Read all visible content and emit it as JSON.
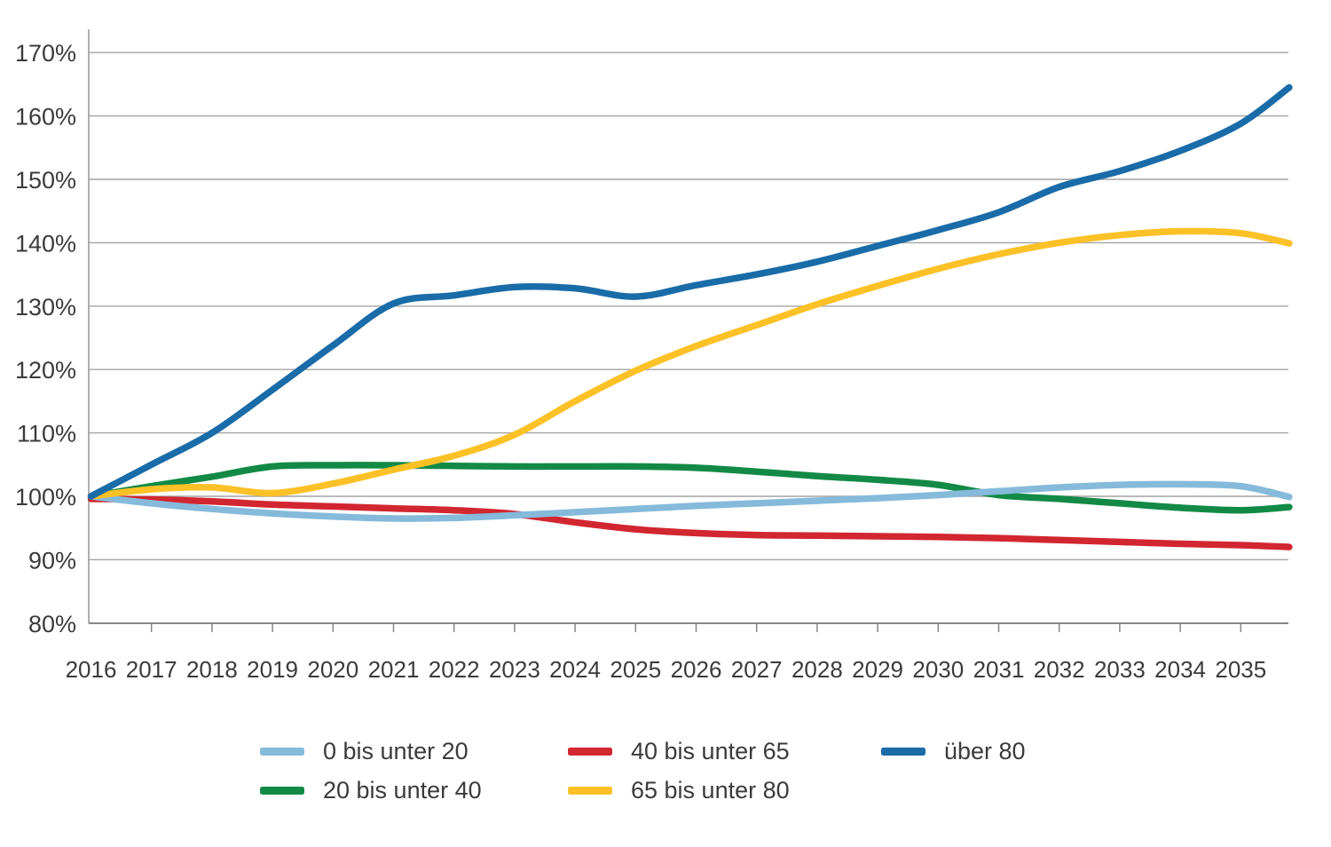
{
  "chart_data": {
    "type": "line",
    "title": "",
    "xlabel": "",
    "ylabel": "",
    "unit": "percent",
    "grid": "horizontal",
    "legend_position": "bottom",
    "x": [
      2016,
      2017,
      2018,
      2019,
      2020,
      2021,
      2022,
      2023,
      2024,
      2025,
      2026,
      2027,
      2028,
      2029,
      2030,
      2031,
      2032,
      2033,
      2034,
      2035,
      2035.8
    ],
    "x_tick_years": [
      2016,
      2017,
      2018,
      2019,
      2020,
      2021,
      2022,
      2023,
      2024,
      2025,
      2026,
      2027,
      2028,
      2029,
      2030,
      2031,
      2032,
      2033,
      2034,
      2035
    ],
    "x_tick_labels": [
      "2016",
      "2017",
      "2018",
      "2019",
      "2020",
      "2021",
      "2022",
      "2023",
      "2024",
      "2025",
      "2026",
      "2027",
      "2028",
      "2029",
      "2030",
      "2031",
      "2032",
      "2033",
      "2034",
      "2035"
    ],
    "y_range": [
      80,
      170
    ],
    "y_ticks": [
      80,
      90,
      100,
      110,
      120,
      130,
      140,
      150,
      160,
      170
    ],
    "y_tick_labels": [
      "80%",
      "90%",
      "100%",
      "110%",
      "120%",
      "130%",
      "140%",
      "150%",
      "160%",
      "170%"
    ],
    "series": [
      {
        "id": "20-bis-unter-40",
        "name": "20 bis unter 40",
        "color": "#128a46",
        "values": [
          100,
          101.6,
          103.1,
          104.7,
          104.9,
          104.9,
          104.8,
          104.7,
          104.7,
          104.7,
          104.5,
          103.9,
          103.2,
          102.6,
          101.8,
          100.2,
          99.6,
          98.9,
          98.2,
          97.8,
          98.3
        ]
      },
      {
        "id": "40-bis-unter-65",
        "name": "40 bis unter 65",
        "color": "#d22630",
        "values": [
          99.6,
          99.5,
          99.2,
          98.7,
          98.4,
          98.1,
          97.8,
          97.2,
          95.9,
          94.8,
          94.2,
          93.9,
          93.8,
          93.7,
          93.6,
          93.4,
          93.1,
          92.8,
          92.5,
          92.3,
          92.0
        ]
      },
      {
        "id": "0-bis-unter-20",
        "name": "0 bis unter 20",
        "color": "#85badb",
        "values": [
          100,
          98.9,
          98.0,
          97.3,
          96.8,
          96.5,
          96.6,
          97.0,
          97.5,
          98.0,
          98.5,
          98.9,
          99.3,
          99.7,
          100.2,
          100.8,
          101.4,
          101.8,
          101.9,
          101.6,
          99.9
        ]
      },
      {
        "id": "65-bis-unter-80",
        "name": "65 bis unter 80",
        "color": "#fcc127",
        "values": [
          100,
          101.1,
          101.4,
          100.5,
          102.0,
          104.2,
          106.4,
          109.7,
          115.0,
          119.8,
          123.7,
          127.0,
          130.3,
          133.2,
          135.9,
          138.2,
          140.0,
          141.2,
          141.8,
          141.5,
          139.9
        ]
      },
      {
        "id": "ueber-80",
        "name": "über 80",
        "color": "#1a6ca8",
        "values": [
          100,
          105.0,
          110.0,
          116.8,
          123.8,
          130.4,
          131.7,
          133.0,
          132.8,
          131.5,
          133.3,
          135.0,
          137.0,
          139.5,
          142.0,
          144.8,
          148.8,
          151.3,
          154.5,
          158.8,
          164.5
        ]
      }
    ]
  }
}
